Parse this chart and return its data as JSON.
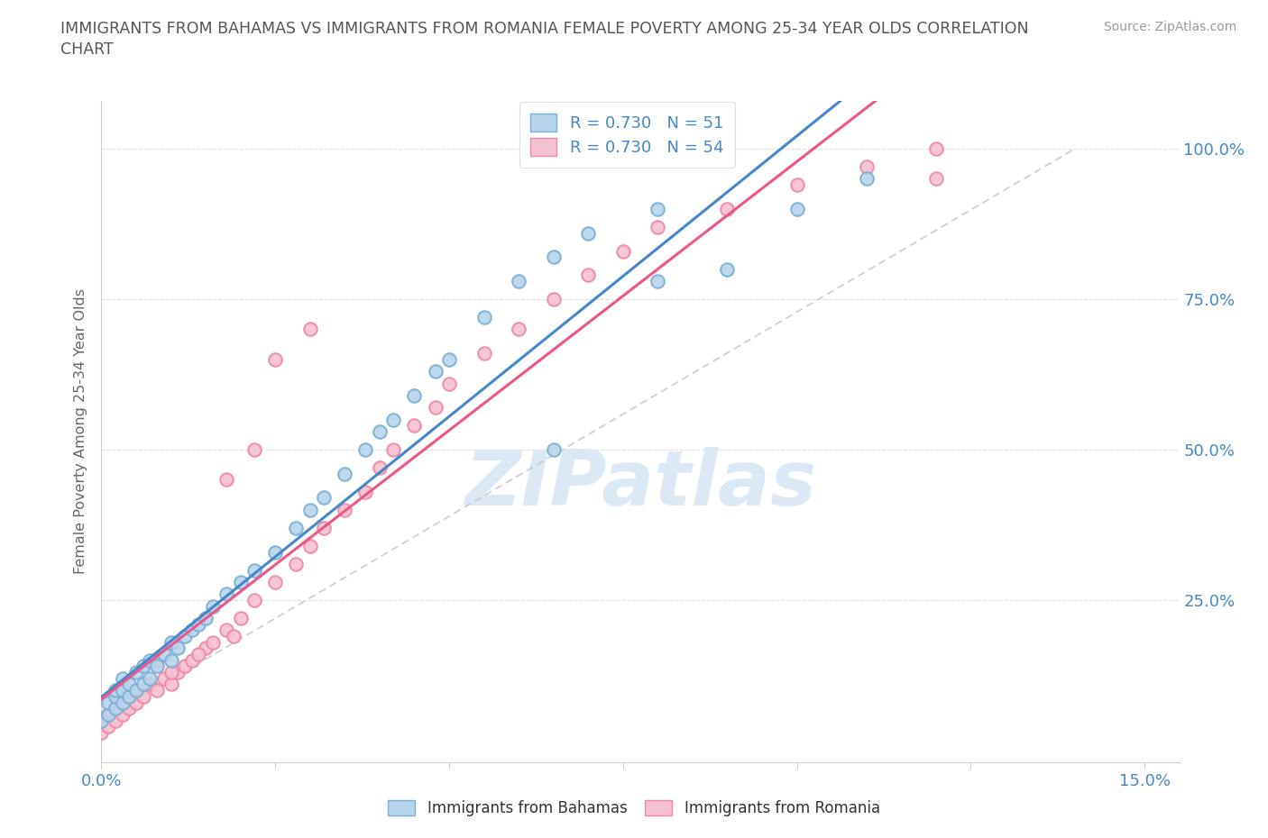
{
  "title_line1": "IMMIGRANTS FROM BAHAMAS VS IMMIGRANTS FROM ROMANIA FEMALE POVERTY AMONG 25-34 YEAR OLDS CORRELATION",
  "title_line2": "CHART",
  "source_text": "Source: ZipAtlas.com",
  "ylabel": "Female Poverty Among 25-34 Year Olds",
  "r_bahamas": 0.73,
  "n_bahamas": 51,
  "r_romania": 0.73,
  "n_romania": 54,
  "legend_labels": [
    "Immigrants from Bahamas",
    "Immigrants from Romania"
  ],
  "blue_face": "#b8d4ea",
  "pink_face": "#f5c0d0",
  "blue_edge": "#7ab0d4",
  "pink_edge": "#ee88aa",
  "blue_line": "#4488cc",
  "pink_line": "#ee5588",
  "text_blue": "#4488cc",
  "title_color": "#555555",
  "watermark_color": "#dce9f5",
  "grid_color": "#e0e0e0",
  "ref_line_color": "#cccccc",
  "xlim_min": 0.0,
  "xlim_max": 0.155,
  "ylim_min": -0.02,
  "ylim_max": 1.08,
  "bahamas_x": [
    0.0,
    0.001,
    0.001,
    0.002,
    0.002,
    0.002,
    0.003,
    0.003,
    0.003,
    0.004,
    0.004,
    0.005,
    0.005,
    0.006,
    0.006,
    0.007,
    0.007,
    0.008,
    0.009,
    0.01,
    0.01,
    0.011,
    0.012,
    0.013,
    0.014,
    0.015,
    0.016,
    0.018,
    0.02,
    0.022,
    0.025,
    0.028,
    0.03,
    0.032,
    0.035,
    0.038,
    0.04,
    0.042,
    0.045,
    0.048,
    0.05,
    0.055,
    0.06,
    0.065,
    0.07,
    0.08,
    0.09,
    0.1,
    0.11,
    0.065,
    0.08
  ],
  "bahamas_y": [
    0.05,
    0.06,
    0.08,
    0.07,
    0.09,
    0.1,
    0.08,
    0.1,
    0.12,
    0.09,
    0.11,
    0.1,
    0.13,
    0.11,
    0.14,
    0.12,
    0.15,
    0.14,
    0.16,
    0.15,
    0.18,
    0.17,
    0.19,
    0.2,
    0.21,
    0.22,
    0.24,
    0.26,
    0.28,
    0.3,
    0.33,
    0.37,
    0.4,
    0.42,
    0.46,
    0.5,
    0.53,
    0.55,
    0.59,
    0.63,
    0.65,
    0.72,
    0.78,
    0.82,
    0.86,
    0.9,
    0.8,
    0.9,
    0.95,
    0.5,
    0.78
  ],
  "romania_x": [
    0.0,
    0.001,
    0.001,
    0.002,
    0.002,
    0.003,
    0.003,
    0.004,
    0.004,
    0.005,
    0.005,
    0.006,
    0.007,
    0.008,
    0.009,
    0.01,
    0.011,
    0.012,
    0.013,
    0.015,
    0.016,
    0.018,
    0.02,
    0.022,
    0.025,
    0.028,
    0.03,
    0.032,
    0.035,
    0.038,
    0.04,
    0.042,
    0.045,
    0.048,
    0.05,
    0.055,
    0.06,
    0.065,
    0.07,
    0.075,
    0.08,
    0.09,
    0.1,
    0.11,
    0.12,
    0.025,
    0.03,
    0.018,
    0.022,
    0.008,
    0.01,
    0.014,
    0.019,
    0.12
  ],
  "romania_y": [
    0.03,
    0.04,
    0.06,
    0.05,
    0.07,
    0.06,
    0.08,
    0.07,
    0.09,
    0.08,
    0.1,
    0.09,
    0.11,
    0.1,
    0.12,
    0.11,
    0.13,
    0.14,
    0.15,
    0.17,
    0.18,
    0.2,
    0.22,
    0.25,
    0.28,
    0.31,
    0.34,
    0.37,
    0.4,
    0.43,
    0.47,
    0.5,
    0.54,
    0.57,
    0.61,
    0.66,
    0.7,
    0.75,
    0.79,
    0.83,
    0.87,
    0.9,
    0.94,
    0.97,
    1.0,
    0.65,
    0.7,
    0.45,
    0.5,
    0.15,
    0.13,
    0.16,
    0.19,
    0.95
  ]
}
